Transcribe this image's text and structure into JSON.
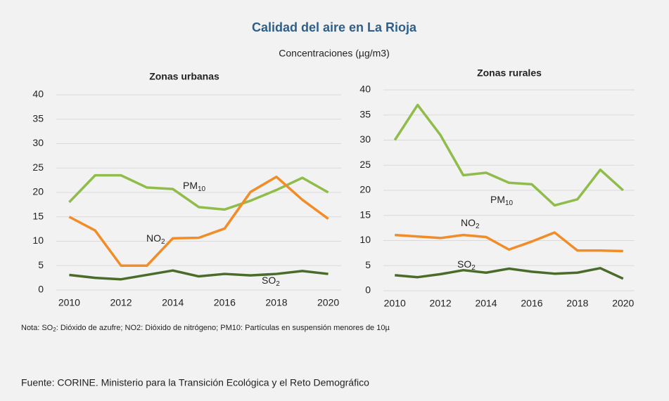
{
  "title": "Calidad del aire en La Rioja",
  "subtitle": "Concentraciones (µg/m3)",
  "note": {
    "before": "Nota: SO",
    "sub": "2",
    "after": ": Dióxido de azufre; NO2: Dióxido de nitrógeno; PM10: Partículas en suspensión menores de 10µ"
  },
  "source": "Fuente: CORINE. Ministerio para la Transición Ecológica y el Reto Demográfico",
  "chart_data": [
    {
      "type": "line",
      "title": "Zonas urbanas",
      "x": [
        2010,
        2011,
        2012,
        2013,
        2014,
        2015,
        2016,
        2017,
        2018,
        2019,
        2020
      ],
      "xlim": [
        2009.5,
        2020.5
      ],
      "xticks": [
        2010,
        2012,
        2014,
        2016,
        2018,
        2020
      ],
      "ylim": [
        0,
        40
      ],
      "yticks": [
        0,
        5,
        10,
        15,
        20,
        25,
        30,
        35,
        40
      ],
      "grid": true,
      "series": [
        {
          "name": "PM",
          "subscript": "10",
          "color": "#8fbc4a",
          "values": [
            18,
            23.5,
            23.5,
            21,
            20.7,
            17,
            16.5,
            18.3,
            20.5,
            23,
            20
          ]
        },
        {
          "name": "NO",
          "subscript": "2",
          "color": "#f28c28",
          "values": [
            15,
            12.2,
            5,
            5,
            10.6,
            10.7,
            12.6,
            20.1,
            23.2,
            18.5,
            14.6
          ]
        },
        {
          "name": "SO",
          "subscript": "2",
          "color": "#4a6b2a",
          "values": [
            3.1,
            2.5,
            2.2,
            3.1,
            4,
            2.8,
            3.3,
            3,
            3.3,
            3.9,
            3.3
          ]
        }
      ]
    },
    {
      "type": "line",
      "title": "Zonas rurales",
      "x": [
        2010,
        2011,
        2012,
        2013,
        2014,
        2015,
        2016,
        2017,
        2018,
        2019,
        2020
      ],
      "xlim": [
        2009.5,
        2020.5
      ],
      "xticks": [
        2010,
        2012,
        2014,
        2016,
        2018,
        2020
      ],
      "ylim": [
        0,
        40
      ],
      "yticks": [
        0,
        5,
        10,
        15,
        20,
        25,
        30,
        35,
        40
      ],
      "grid": true,
      "series": [
        {
          "name": "PM",
          "subscript": "10",
          "color": "#8fbc4a",
          "values": [
            30,
            37,
            31,
            23,
            23.5,
            21.5,
            21.2,
            17,
            18.2,
            24.1,
            20
          ]
        },
        {
          "name": "NO",
          "subscript": "2",
          "color": "#f28c28",
          "values": [
            11.1,
            10.8,
            10.5,
            11.1,
            10.7,
            8.2,
            9.8,
            11.6,
            8,
            8,
            7.9
          ]
        },
        {
          "name": "SO",
          "subscript": "2",
          "color": "#4a6b2a",
          "values": [
            3.1,
            2.7,
            3.3,
            4.1,
            3.6,
            4.4,
            3.8,
            3.4,
            3.6,
            4.5,
            2.4
          ]
        }
      ]
    }
  ]
}
